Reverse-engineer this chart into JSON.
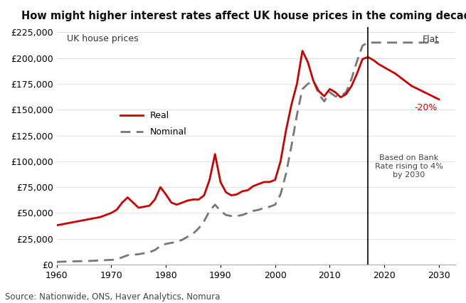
{
  "title": "How might higher interest rates affect UK house prices in the coming decades?",
  "subtitle": "UK house prices",
  "source": "Source: Nationwide, ONS, Haver Analytics, Nomura",
  "ylim": [
    0,
    230000
  ],
  "xlim": [
    1960,
    2033
  ],
  "yticks": [
    0,
    25000,
    50000,
    75000,
    100000,
    125000,
    150000,
    175000,
    200000,
    225000
  ],
  "xticks": [
    1960,
    1970,
    1980,
    1990,
    2000,
    2010,
    2020,
    2030
  ],
  "vertical_line_x": 2017,
  "real_x": [
    1960,
    1962,
    1964,
    1966,
    1968,
    1970,
    1971,
    1972,
    1973,
    1974,
    1975,
    1976,
    1977,
    1978,
    1979,
    1980,
    1981,
    1982,
    1983,
    1984,
    1985,
    1986,
    1987,
    1988,
    1989,
    1990,
    1991,
    1992,
    1993,
    1994,
    1995,
    1996,
    1997,
    1998,
    1999,
    2000,
    2001,
    2002,
    2003,
    2004,
    2005,
    2006,
    2007,
    2008,
    2009,
    2010,
    2011,
    2012,
    2013,
    2014,
    2015,
    2016,
    2017,
    2018,
    2019,
    2020,
    2021,
    2022,
    2023,
    2025,
    2030
  ],
  "real_y": [
    38000,
    40000,
    42000,
    44000,
    46000,
    50000,
    53000,
    60000,
    65000,
    60000,
    55000,
    56000,
    57000,
    63000,
    75000,
    68000,
    60000,
    58000,
    60000,
    62000,
    63000,
    63000,
    67000,
    82000,
    107000,
    80000,
    70000,
    67000,
    68000,
    71000,
    72000,
    76000,
    78000,
    80000,
    80000,
    82000,
    100000,
    130000,
    155000,
    175000,
    207000,
    196000,
    178000,
    168000,
    163000,
    170000,
    167000,
    162000,
    165000,
    173000,
    185000,
    199000,
    201000,
    198000,
    194000,
    191000,
    188000,
    185000,
    181000,
    173000,
    160000
  ],
  "nominal_x": [
    1960,
    1962,
    1964,
    1966,
    1968,
    1970,
    1971,
    1972,
    1973,
    1974,
    1975,
    1976,
    1977,
    1978,
    1979,
    1980,
    1981,
    1982,
    1983,
    1984,
    1985,
    1986,
    1987,
    1988,
    1989,
    1990,
    1991,
    1992,
    1993,
    1994,
    1995,
    1996,
    1997,
    1998,
    1999,
    2000,
    2001,
    2002,
    2003,
    2004,
    2005,
    2006,
    2007,
    2008,
    2009,
    2010,
    2011,
    2012,
    2013,
    2014,
    2015,
    2016,
    2017,
    2018,
    2020,
    2025,
    2030
  ],
  "nominal_y": [
    2500,
    3000,
    3200,
    3500,
    4000,
    4500,
    5000,
    7000,
    9000,
    9500,
    10000,
    11000,
    12000,
    14000,
    18000,
    20000,
    21000,
    22000,
    24000,
    27000,
    30000,
    35000,
    42000,
    52000,
    58000,
    52000,
    48000,
    47000,
    47000,
    48000,
    50000,
    52000,
    53000,
    55000,
    56000,
    58000,
    68000,
    88000,
    115000,
    145000,
    170000,
    175000,
    178000,
    165000,
    158000,
    167000,
    163000,
    163000,
    167000,
    180000,
    197000,
    212000,
    215000,
    215000,
    215000,
    215000,
    215000
  ],
  "real_color": "#cc0000",
  "nominal_color": "#777777",
  "vline_color": "#000000",
  "annotation_color_flat": "#333333",
  "annotation_color_20": "#cc0000",
  "bg_color": "#ffffff",
  "title_fontsize": 10.5,
  "subtitle_fontsize": 9,
  "tick_fontsize": 9,
  "source_fontsize": 8.5
}
